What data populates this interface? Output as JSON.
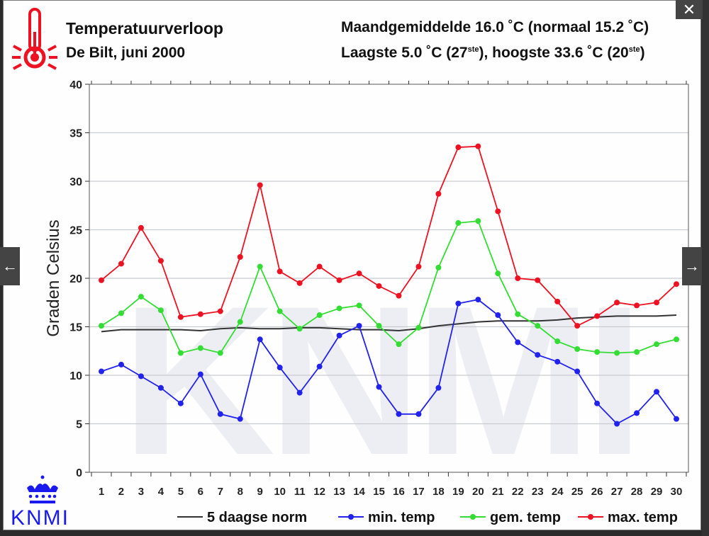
{
  "header": {
    "title": "Temperatuurverloop",
    "subtitle": "De Bilt, juni 2000",
    "monthly_avg_line": "Maandgemiddelde 16.0 ˚C (normaal 15.2 ˚C)",
    "extremes_prefix": "Laagste 5.0 ˚C (27",
    "extremes_sup1": "ste",
    "extremes_middle": "), hoogste 33.6 ˚C (20",
    "extremes_sup2": "ste",
    "extremes_suffix": ")"
  },
  "logo": {
    "text": "KNMI",
    "color": "#1a1aee"
  },
  "navigation": {
    "prev_icon": "arrow-left-icon",
    "next_icon": "arrow-right-icon",
    "close_icon": "close-icon",
    "prev_glyph": "←",
    "next_glyph": "→",
    "close_glyph": "✕"
  },
  "chart_data": {
    "type": "line",
    "title": "Temperatuurverloop De Bilt, juni 2000",
    "xlabel": "",
    "ylabel": "Graden Celsius",
    "ylim": [
      0,
      40
    ],
    "yticks": [
      0,
      5,
      10,
      15,
      20,
      25,
      30,
      35,
      40
    ],
    "grid": true,
    "legend_position": "bottom",
    "x": [
      1,
      2,
      3,
      4,
      5,
      6,
      7,
      8,
      9,
      10,
      11,
      12,
      13,
      14,
      15,
      16,
      17,
      18,
      19,
      20,
      21,
      22,
      23,
      24,
      25,
      26,
      27,
      28,
      29,
      30
    ],
    "series": [
      {
        "name": "5 daagse norm",
        "color": "#333333",
        "markers": false,
        "values": [
          14.5,
          14.7,
          14.7,
          14.7,
          14.7,
          14.6,
          14.8,
          14.9,
          14.8,
          14.8,
          14.9,
          14.9,
          14.8,
          14.7,
          14.7,
          14.6,
          14.8,
          15.1,
          15.3,
          15.5,
          15.6,
          15.6,
          15.6,
          15.7,
          15.9,
          16.0,
          16.1,
          16.1,
          16.1,
          16.2
        ]
      },
      {
        "name": "min. temp",
        "color": "#2222ee",
        "markers": true,
        "values": [
          10.4,
          11.1,
          9.9,
          8.7,
          7.1,
          10.1,
          6.0,
          5.5,
          13.7,
          10.8,
          8.2,
          10.9,
          14.1,
          15.1,
          8.8,
          6.0,
          6.0,
          8.7,
          17.4,
          17.8,
          16.2,
          13.4,
          12.1,
          11.4,
          10.4,
          7.1,
          5.0,
          6.1,
          8.3,
          5.5
        ]
      },
      {
        "name": "gem. temp",
        "color": "#33dd33",
        "markers": true,
        "values": [
          15.1,
          16.4,
          18.1,
          16.7,
          12.3,
          12.8,
          12.3,
          15.5,
          21.2,
          16.6,
          14.8,
          16.2,
          16.9,
          17.2,
          15.1,
          13.2,
          14.9,
          21.1,
          25.7,
          25.9,
          20.5,
          16.3,
          15.1,
          13.5,
          12.7,
          12.4,
          12.3,
          12.4,
          13.2,
          13.7
        ]
      },
      {
        "name": "max. temp",
        "color": "#ee1122",
        "markers": true,
        "values": [
          19.8,
          21.5,
          25.2,
          21.8,
          16.0,
          16.3,
          16.6,
          22.2,
          29.6,
          20.7,
          19.5,
          21.2,
          19.8,
          20.5,
          19.2,
          18.2,
          21.2,
          28.7,
          33.5,
          33.6,
          26.9,
          20.0,
          19.8,
          17.6,
          15.1,
          16.1,
          17.5,
          17.2,
          17.5,
          19.4
        ]
      }
    ]
  }
}
